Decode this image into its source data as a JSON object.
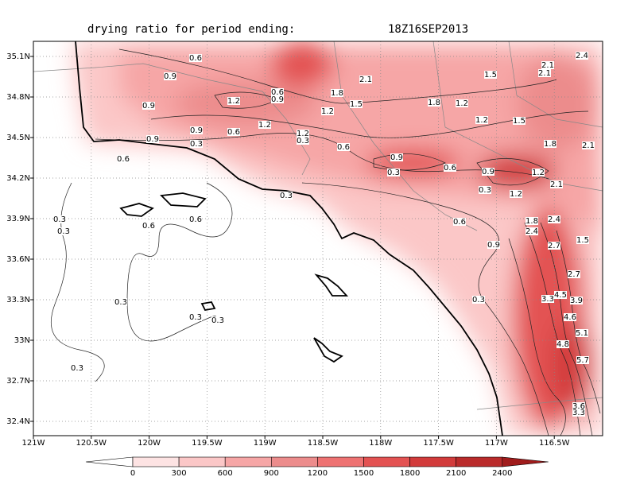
{
  "header": {
    "title": "drying ratio for period ending:",
    "time": "18Z16SEP2013"
  },
  "map": {
    "lat_labels": [
      "35.1N",
      "34.8N",
      "34.5N",
      "34.2N",
      "33.9N",
      "33.6N",
      "33.3N",
      "33N",
      "32.7N",
      "32.4N"
    ],
    "lon_labels": [
      "121W",
      "120.5W",
      "120W",
      "119.5W",
      "119W",
      "118.5W",
      "118W",
      "117.5W",
      "117W",
      "116.5W"
    ],
    "contour_labels": [
      "0.6",
      "0.9",
      "0.6",
      "0.9",
      "1.2",
      "0.9",
      "1.2",
      "0.9",
      "0.6",
      "0.9",
      "0.3",
      "1.2",
      "0.3",
      "0.6",
      "0.6",
      "1.8",
      "2.1",
      "1.5",
      "1.2",
      "1.8",
      "1.2",
      "1.5",
      "1.2",
      "1.5",
      "2.1",
      "2.1",
      "2.4",
      "1.8",
      "2.1",
      "0.9",
      "0.3",
      "0.6",
      "0.9",
      "0.3",
      "1.2",
      "2.1",
      "1.2",
      "0.3",
      "0.6",
      "0.6",
      "0.3",
      "0.3",
      "0.6",
      "1.8",
      "2.4",
      "2.4",
      "1.5",
      "2.7",
      "0.9",
      "2.7",
      "0.3",
      "3.3",
      "4.5",
      "3.9",
      "4.6",
      "5.1",
      "4.8",
      "5.7",
      "0.3",
      "0.3",
      "0.3",
      "0.3",
      "3.6",
      "3.3"
    ]
  },
  "colorbar": {
    "levels": [
      0,
      300,
      600,
      900,
      1200,
      1500,
      1800,
      2100,
      2400
    ],
    "colors": [
      "#fde3e3",
      "#fbc7c7",
      "#f6a6a6",
      "#ec8c8c",
      "#ee7272",
      "#e35252",
      "#d23b3b",
      "#ba2b2b",
      "#a01c1c"
    ]
  }
}
